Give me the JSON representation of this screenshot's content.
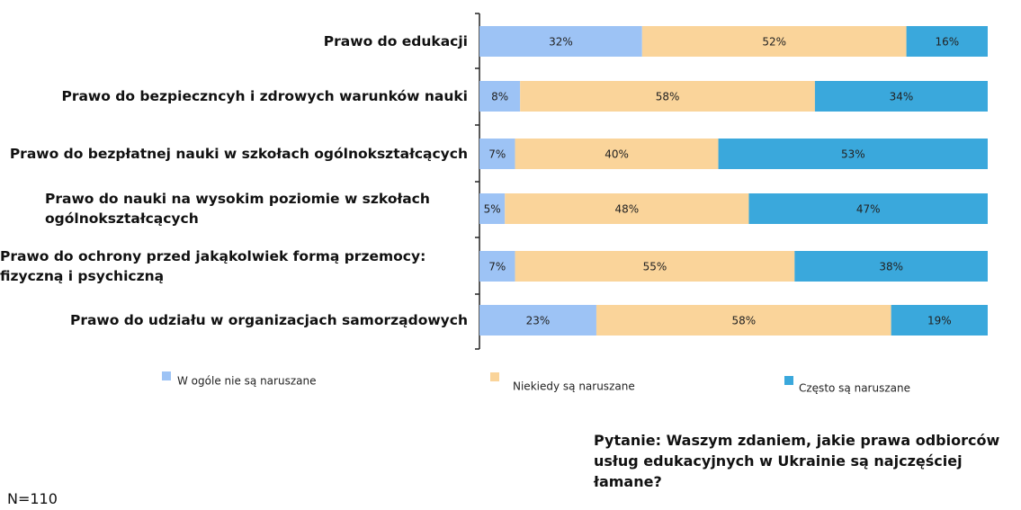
{
  "chart_data": {
    "type": "stacked-bar-horizontal",
    "categories": [
      "Prawo do edukacji",
      "Prawo do bezpieczncyh i zdrowych warunków nauki",
      "Prawo do bezpłatnej nauki w szkołach ogólnokształcących",
      "Prawo do nauki na wysokim poziomie w szkołach ogólnokształcących",
      "Prawo do ochrony przed jakąkolwiek formą przemocy: fizyczną i psychiczną",
      "Prawo do udziału w organizacjach samorządowych"
    ],
    "series": [
      {
        "name": "W ogóle nie są naruszane",
        "color": "#9dc3f5",
        "values": [
          32,
          8,
          7,
          5,
          7,
          23
        ],
        "value_labels": [
          "32%",
          "8%",
          "7%",
          "5%",
          "7%",
          "23%"
        ]
      },
      {
        "name": "Niekiedy są naruszane",
        "color": "#fad49a",
        "values": [
          52,
          58,
          40,
          48,
          55,
          58
        ],
        "value_labels": [
          "52%",
          "58%",
          "40%",
          "48%",
          "55%",
          "58%"
        ]
      },
      {
        "name": "Często są naruszane",
        "color": "#3aa8dc",
        "values": [
          16,
          34,
          53,
          47,
          38,
          19
        ],
        "value_labels": [
          "16%",
          "34%",
          "53%",
          "47%",
          "38%",
          "19%"
        ]
      }
    ],
    "note": "Pytanie: Waszym zdaniem, jakie prawa odbiorców usług edukacyjnych w Ukrainie są najczęściej łamane?",
    "sample": "N=110"
  }
}
